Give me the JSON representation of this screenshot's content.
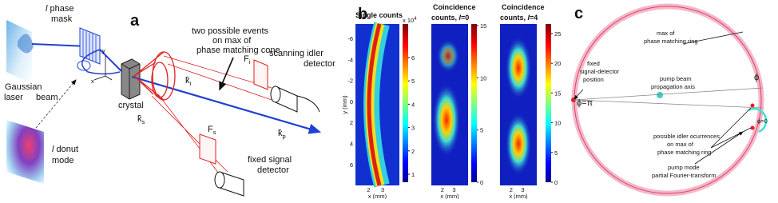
{
  "panel_a": {
    "label": "a",
    "mask_l": "l",
    "mask_phase": " phase",
    "mask_line2": "mask",
    "gaussian": "Gaussian",
    "laser": "laser",
    "beam": "beam",
    "donut_l": "l",
    "donut": " donut",
    "mode": "mode",
    "axis_y": "y",
    "axis_x": "x",
    "crystal": "crystal",
    "events_line1": "two possible events",
    "events_line2": "on max of",
    "events_line3": "phase matching cone",
    "ki": "k̂",
    "ki_sub": "i",
    "fi": "F",
    "fi_sub": "i",
    "idler_line1": "scanning  idler",
    "idler_line2": "detector",
    "ks": "k̂",
    "ks_sub": "s",
    "kp": "k̂",
    "kp_sub": "p",
    "fs": "F",
    "fs_sub": "s",
    "signal_line1": "fixed  signal",
    "signal_line2": "detector"
  },
  "panel_b": {
    "label": "b",
    "y_label": "y (mm)",
    "yticks": [
      -6,
      -4,
      -2,
      0,
      2,
      4,
      6
    ],
    "maps": [
      {
        "title": [
          "Single counts"
        ],
        "x_label": "x (mm)",
        "xticks": [
          2,
          3
        ],
        "cbar_exp": "x 10",
        "cbar_exp_sup": "4",
        "cbar_ticks": [
          1,
          2,
          3,
          4,
          5,
          6
        ]
      },
      {
        "title": [
          "Coincidence",
          "counts, ",
          "l",
          "=0"
        ],
        "x_label": "x (mm)",
        "xticks": [
          2,
          3
        ],
        "cbar_ticks": [
          0,
          5,
          10,
          15
        ]
      },
      {
        "title": [
          "Coincidence",
          "counts, ",
          "l",
          "=4"
        ],
        "x_label": "x (mm)",
        "xticks": [
          2,
          3
        ],
        "cbar_ticks": [
          0,
          5,
          10,
          15,
          20,
          25
        ]
      }
    ]
  },
  "panel_c": {
    "label": "c",
    "ring_line1": "max of",
    "ring_line2": "phase matching ring",
    "fixed_line1": "fixed",
    "fixed_line2": "signal-detector",
    "fixed_line3": "position",
    "pump_line1": "pump beam",
    "pump_line2": "propagation axis",
    "phi": "ϕ",
    "phi_pi": "ϕ=π",
    "phi_0": "ϕ=0",
    "idler_line1": "possible idler ocurrences",
    "idler_line2": "on max of",
    "idler_line3": "phase matching ring",
    "pmode_line1": "pump mode",
    "pmode_line2": "partial Fourier-transform"
  }
}
